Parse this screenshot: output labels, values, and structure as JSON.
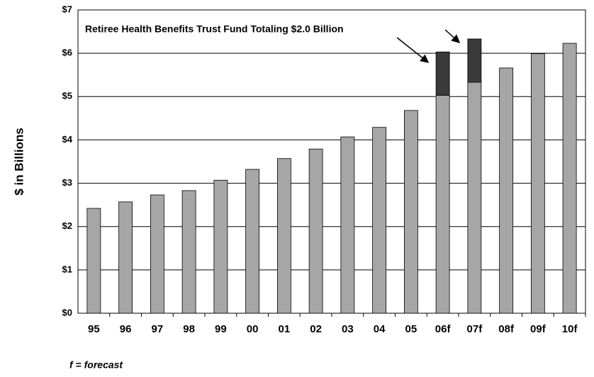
{
  "chart_data": {
    "type": "stacked-bar",
    "annotation": "Retiree Health Benefits Trust Fund Totaling $2.0 Billion",
    "ylabel": "$ in Billions",
    "footnote": "f = forecast",
    "categories": [
      "95",
      "96",
      "97",
      "98",
      "99",
      "00",
      "01",
      "02",
      "03",
      "04",
      "05",
      "06f",
      "07f",
      "08f",
      "09f",
      "10f"
    ],
    "series": [
      {
        "color": "#a6a6a6",
        "values": [
          2.42,
          2.57,
          2.73,
          2.83,
          3.07,
          3.32,
          3.57,
          3.79,
          4.07,
          4.29,
          4.68,
          5.03,
          5.33,
          5.66,
          5.99,
          6.23
        ]
      },
      {
        "color": "#3a3a3a",
        "values": [
          null,
          null,
          null,
          null,
          null,
          null,
          null,
          null,
          null,
          null,
          null,
          1.0,
          1.0,
          null,
          null,
          null
        ]
      }
    ],
    "ylim": [
      0,
      7
    ],
    "yticks": [
      {
        "value": 0,
        "label": "$0"
      },
      {
        "value": 1,
        "label": "$1"
      },
      {
        "value": 2,
        "label": "$2"
      },
      {
        "value": 3,
        "label": "$3"
      },
      {
        "value": 4,
        "label": "$4"
      },
      {
        "value": 5,
        "label": "$5"
      },
      {
        "value": 6,
        "label": "$6"
      },
      {
        "value": 7,
        "label": "$7"
      }
    ],
    "grid": true
  }
}
